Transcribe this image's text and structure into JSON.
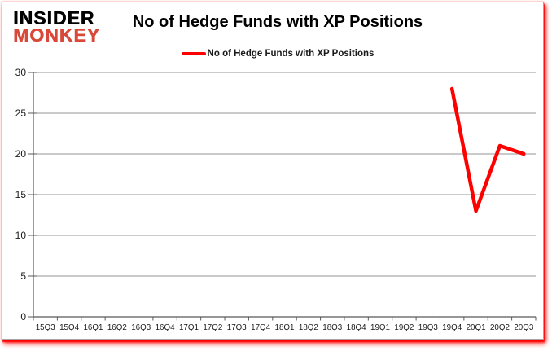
{
  "branding": {
    "logo_line1": "INSIDER",
    "logo_line2": "MONKEY",
    "logo_text_color": "#000000",
    "logo_accent_color": "#d9493a"
  },
  "header": {
    "title": "No of Hedge Funds with XP Positions"
  },
  "legend": {
    "label": "No of Hedge Funds with XP Positions",
    "swatch_color": "#ff0000"
  },
  "chart_data": {
    "type": "line",
    "title": "No of Hedge Funds with XP Positions",
    "categories": [
      "15Q3",
      "15Q4",
      "16Q1",
      "16Q2",
      "16Q3",
      "16Q4",
      "17Q1",
      "17Q2",
      "17Q3",
      "17Q4",
      "18Q1",
      "18Q2",
      "18Q3",
      "18Q4",
      "19Q1",
      "19Q2",
      "19Q3",
      "19Q4",
      "20Q1",
      "20Q2",
      "20Q3"
    ],
    "series": [
      {
        "name": "No of Hedge Funds with XP Positions",
        "color": "#ff0000",
        "values": [
          null,
          null,
          null,
          null,
          null,
          null,
          null,
          null,
          null,
          null,
          null,
          null,
          null,
          null,
          null,
          null,
          null,
          28,
          13,
          21,
          20
        ]
      }
    ],
    "xlabel": "",
    "ylabel": "",
    "ylim": [
      0,
      30
    ],
    "yticks": [
      0,
      5,
      10,
      15,
      20,
      25,
      30
    ],
    "grid": true,
    "legend_position": "top-center",
    "colors": {
      "line": "#ff0000",
      "gridline": "#969696",
      "axis": "#595959",
      "tick_label": "#1a1a1a",
      "card_border": "#a8a2a2",
      "shadow": "#ff0000"
    }
  }
}
